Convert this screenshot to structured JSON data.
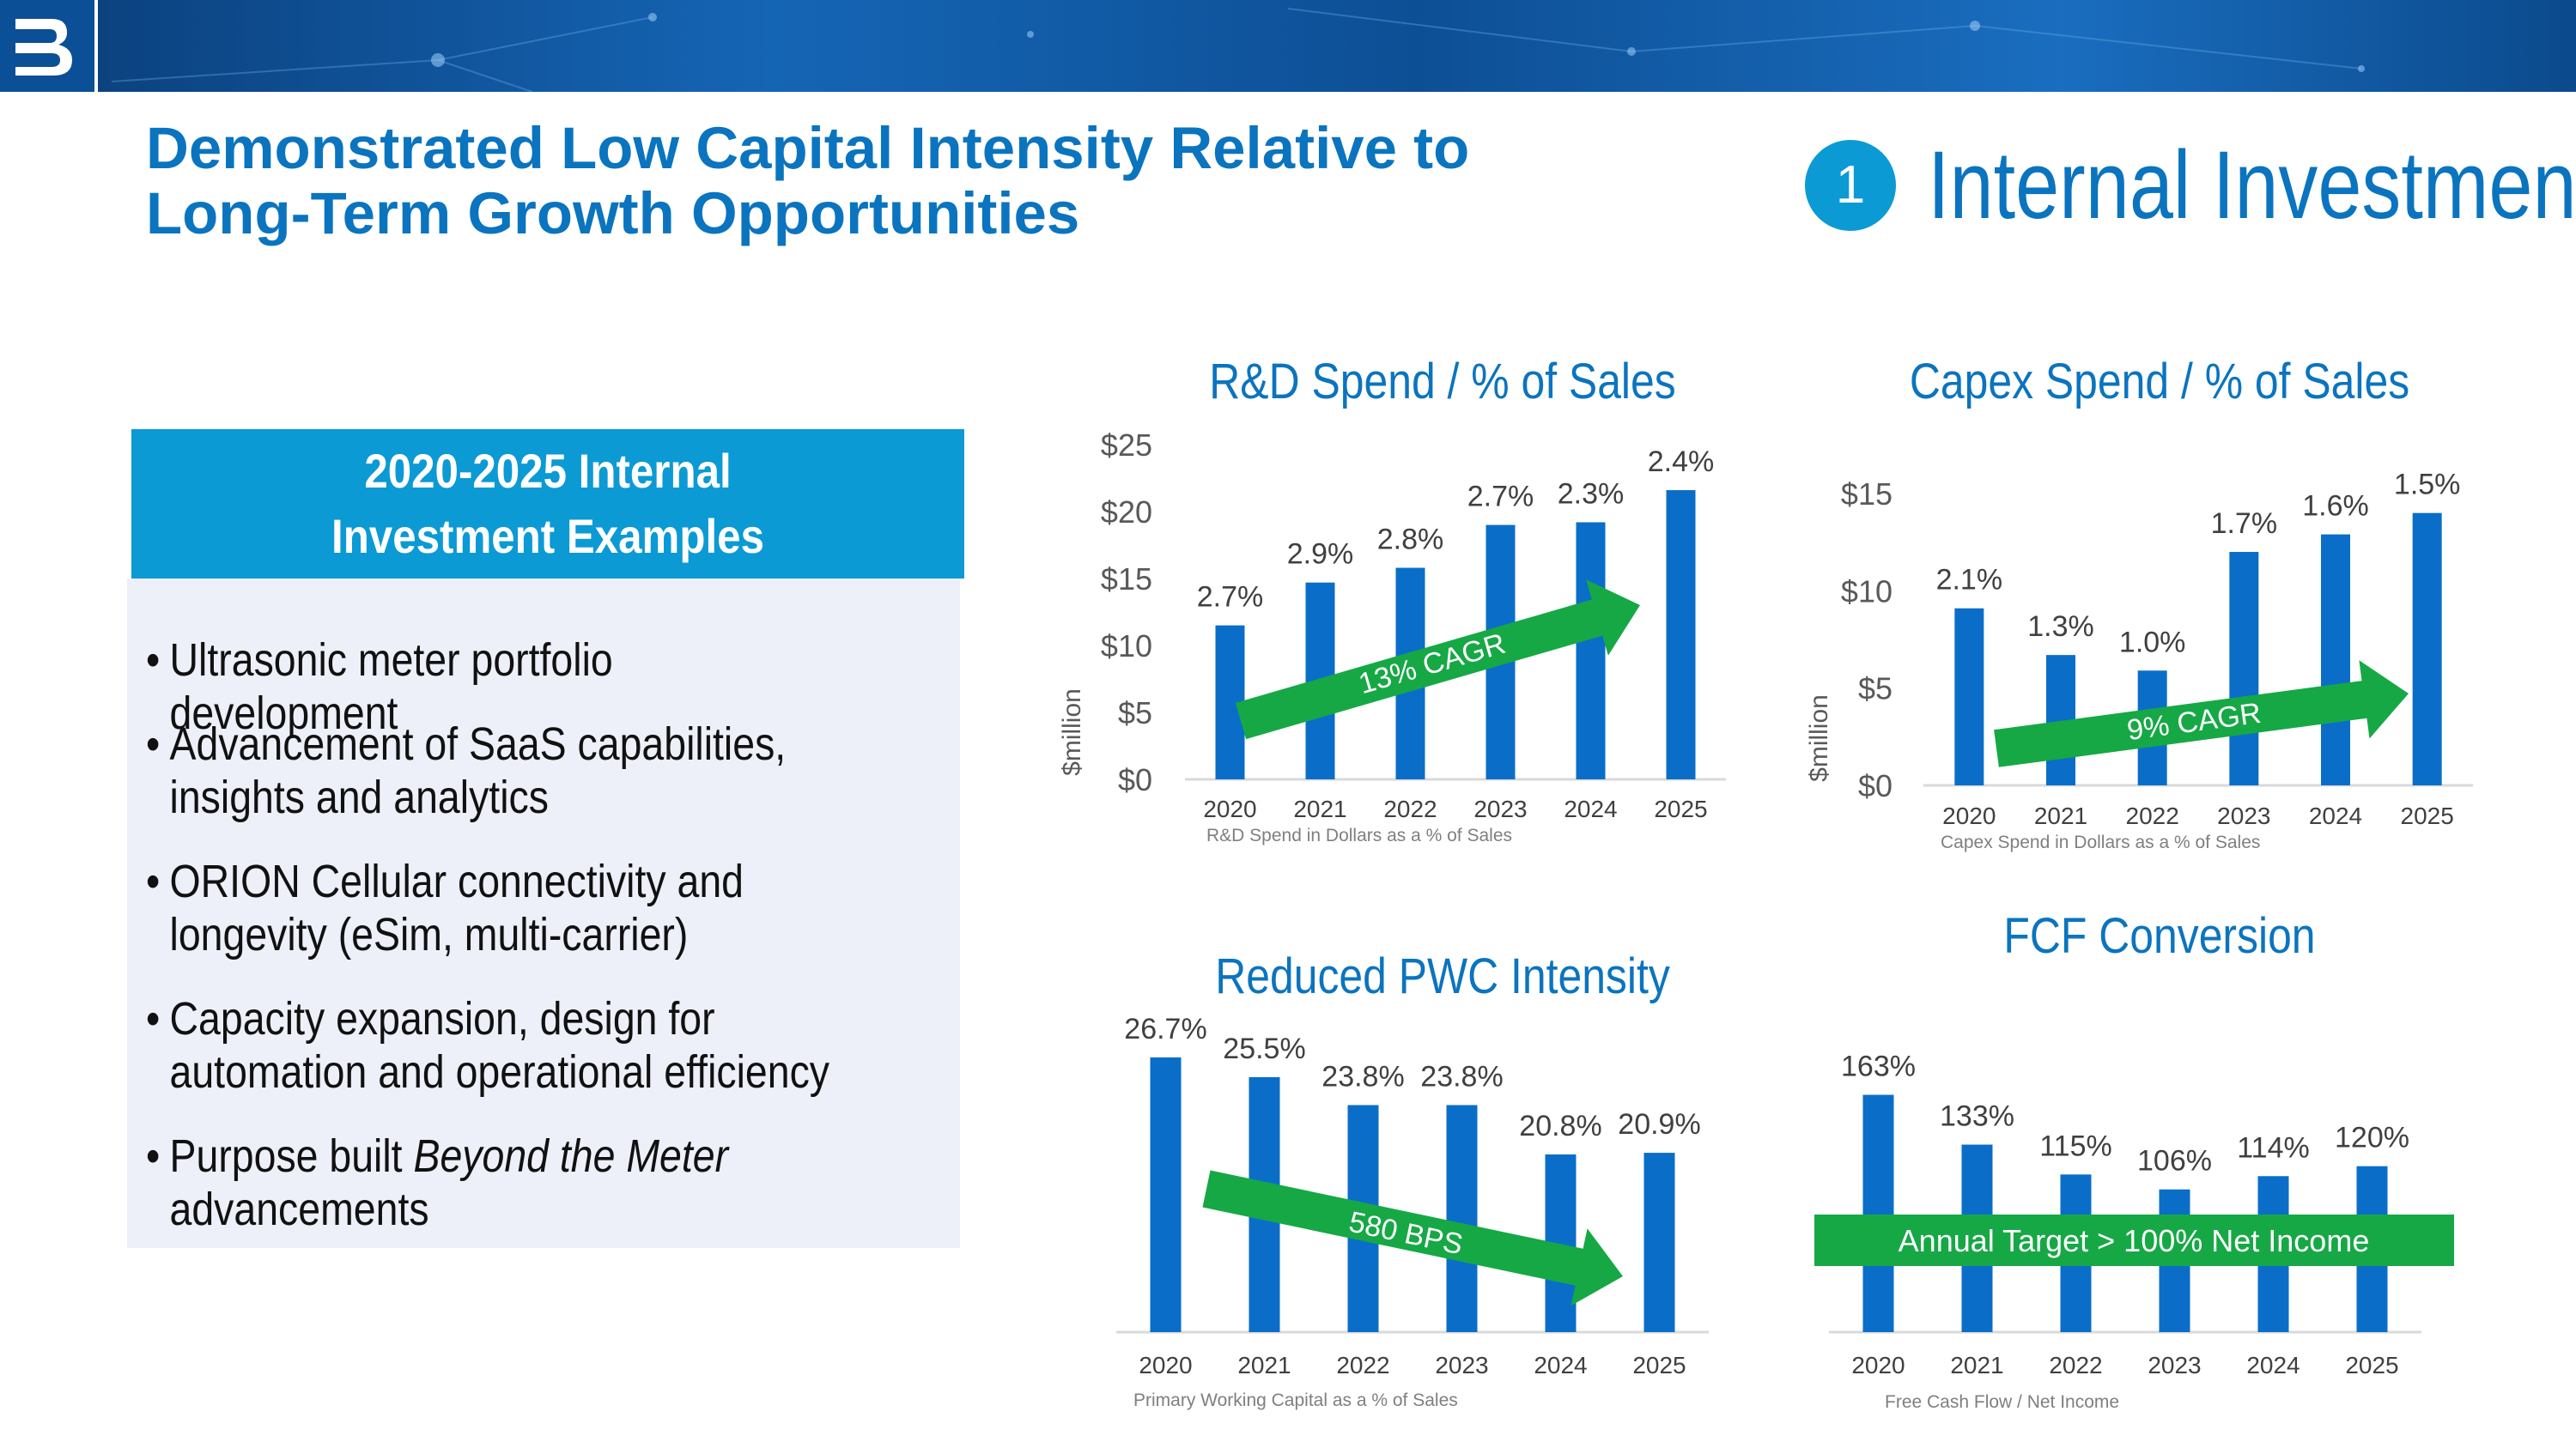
{
  "header": {
    "logo": "badger-meter-logo",
    "title": "Demonstrated Low Capital Intensity Relative to\nLong-Term Growth Opportunities",
    "section_number": "1",
    "section_title": "Internal Investment"
  },
  "panel": {
    "heading": "2020-2025 Internal Investment Examples",
    "bullets": [
      "Ultrasonic meter portfolio development",
      "Advancement of SaaS capabilities, insights and analytics",
      "ORION Cellular connectivity and longevity (eSim, multi-carrier)",
      "Capacity expansion, design for automation and operational efficiency",
      "Purpose built Beyond the Meter advancements"
    ],
    "bullet_char": "•"
  },
  "colors": {
    "bar": "#0a6ec8",
    "arrow": "#16a845",
    "title": "#0b74bf",
    "accent_circle": "#0b9ad4"
  },
  "chart_data": [
    {
      "type": "bar",
      "title": "R&D Spend / % of Sales",
      "categories": [
        "2020",
        "2021",
        "2022",
        "2023",
        "2024",
        "2025"
      ],
      "values": [
        11.5,
        14.7,
        15.8,
        19.0,
        19.2,
        21.6
      ],
      "data_labels": [
        "2.7%",
        "2.9%",
        "2.8%",
        "2.7%",
        "2.3%",
        "2.4%"
      ],
      "ylim": [
        0,
        25
      ],
      "yticks": [
        "$0",
        "$5",
        "$10",
        "$15",
        "$20",
        "$25"
      ],
      "ylabel": "$million",
      "footnote": "R&D Spend in Dollars as a % of Sales",
      "arrow_label": "13% CAGR"
    },
    {
      "type": "bar",
      "title": "Capex Spend / % of Sales",
      "categories": [
        "2020",
        "2021",
        "2022",
        "2023",
        "2024",
        "2025"
      ],
      "values": [
        9.1,
        6.7,
        5.9,
        12.0,
        12.9,
        14.0
      ],
      "data_labels": [
        "2.1%",
        "1.3%",
        "1.0%",
        "1.7%",
        "1.6%",
        "1.5%"
      ],
      "ylim": [
        0,
        15
      ],
      "yticks": [
        "$0",
        "$5",
        "$10",
        "$15"
      ],
      "ylabel": "$million",
      "footnote": "Capex Spend in Dollars as a % of Sales",
      "arrow_label": "9% CAGR"
    },
    {
      "type": "bar",
      "title": "Reduced PWC Intensity",
      "categories": [
        "2020",
        "2021",
        "2022",
        "2023",
        "2024",
        "2025"
      ],
      "values": [
        26.7,
        25.5,
        23.8,
        23.8,
        20.8,
        20.9
      ],
      "data_labels": [
        "26.7%",
        "25.5%",
        "23.8%",
        "23.8%",
        "20.8%",
        "20.9%"
      ],
      "ylim": [
        10,
        28
      ],
      "footnote": "Primary Working Capital as a % of Sales",
      "arrow_label": "580 BPS"
    },
    {
      "type": "bar",
      "title": "FCF Conversion",
      "categories": [
        "2020",
        "2021",
        "2022",
        "2023",
        "2024",
        "2025"
      ],
      "values": [
        163,
        133,
        115,
        106,
        114,
        120
      ],
      "data_labels": [
        "163%",
        "133%",
        "115%",
        "106%",
        "114%",
        "120%"
      ],
      "ylim": [
        20,
        170
      ],
      "footnote": "Free Cash Flow / Net Income",
      "annotation": "Annual Target > 100% Net Income"
    }
  ]
}
